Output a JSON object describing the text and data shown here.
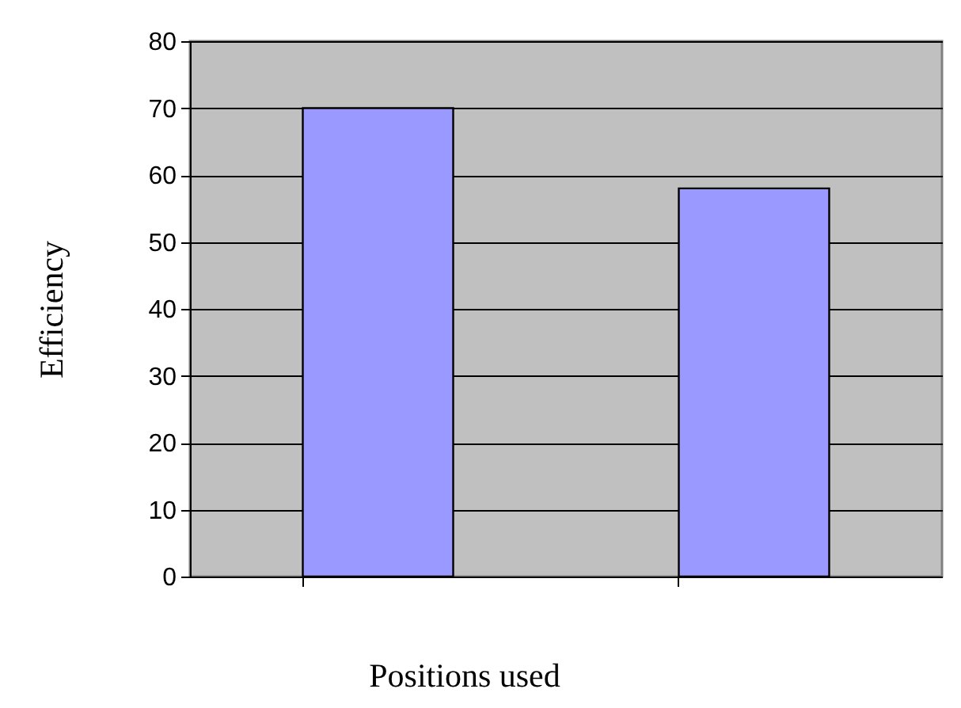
{
  "chart_data": {
    "type": "bar",
    "categories": [
      null,
      null
    ],
    "values": [
      70,
      58
    ],
    "color": "#9999ff",
    "xlabel": "Positions used",
    "ylabel": "Efficiency",
    "ylim": [
      0,
      80
    ],
    "yticks": [
      0,
      10,
      20,
      30,
      40,
      50,
      60,
      70,
      80
    ],
    "grid": "y"
  }
}
